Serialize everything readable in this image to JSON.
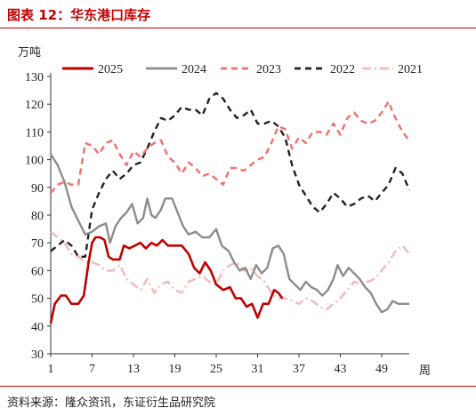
{
  "title": "图表 12：华东港口库存",
  "source": "资料来源：隆众资讯，东证衍生品研究院",
  "colors": {
    "title": "#c00000",
    "rule": "#c00000"
  },
  "chart_data": {
    "type": "line",
    "ylabel": "万吨",
    "xlabel": "周",
    "ylim": [
      30,
      130
    ],
    "yticks": [
      30,
      40,
      50,
      60,
      70,
      80,
      90,
      100,
      110,
      120,
      130
    ],
    "xlim": [
      1,
      53
    ],
    "xticks": [
      1,
      7,
      13,
      19,
      25,
      31,
      37,
      43,
      49
    ],
    "legend_position": "top",
    "grid": false,
    "series": [
      {
        "name": "2025",
        "color": "#c00000",
        "dash": "solid",
        "width": 2.6,
        "points": [
          [
            1,
            41
          ],
          [
            1.6,
            48
          ],
          [
            2.5,
            51
          ],
          [
            3.2,
            51
          ],
          [
            4,
            48
          ],
          [
            5,
            48
          ],
          [
            5.8,
            51
          ],
          [
            6.5,
            63
          ],
          [
            7,
            70
          ],
          [
            7.5,
            72
          ],
          [
            8.2,
            72
          ],
          [
            8.8,
            71
          ],
          [
            9.4,
            65
          ],
          [
            10,
            64
          ],
          [
            11,
            64
          ],
          [
            11.6,
            69
          ],
          [
            12.4,
            68
          ],
          [
            13.2,
            69
          ],
          [
            14,
            70
          ],
          [
            14.8,
            68
          ],
          [
            15.6,
            70
          ],
          [
            16.4,
            69
          ],
          [
            17.2,
            71
          ],
          [
            18,
            69
          ],
          [
            19,
            69
          ],
          [
            20,
            69
          ],
          [
            21,
            66
          ],
          [
            21.8,
            61
          ],
          [
            22.6,
            59
          ],
          [
            23.4,
            63
          ],
          [
            24.2,
            60
          ],
          [
            25,
            55
          ],
          [
            26,
            53
          ],
          [
            27,
            54
          ],
          [
            27.8,
            50
          ],
          [
            28.6,
            50
          ],
          [
            29.4,
            47
          ],
          [
            30.2,
            48
          ],
          [
            31,
            43
          ],
          [
            31.8,
            48
          ],
          [
            32.6,
            48
          ],
          [
            33.4,
            53
          ],
          [
            34,
            52
          ],
          [
            34.6,
            50
          ]
        ]
      },
      {
        "name": "2024",
        "color": "#8c8c8c",
        "dash": "solid",
        "width": 2.4,
        "points": [
          [
            1,
            102
          ],
          [
            2,
            98
          ],
          [
            3,
            92
          ],
          [
            4,
            83
          ],
          [
            5,
            78
          ],
          [
            6,
            73
          ],
          [
            7,
            74
          ],
          [
            8,
            76
          ],
          [
            9,
            77
          ],
          [
            9.6,
            70
          ],
          [
            10.4,
            76
          ],
          [
            11.2,
            79
          ],
          [
            12,
            81
          ],
          [
            12.8,
            84
          ],
          [
            13.6,
            77
          ],
          [
            14.4,
            79
          ],
          [
            15,
            86
          ],
          [
            15.6,
            80
          ],
          [
            16.2,
            79
          ],
          [
            17,
            82
          ],
          [
            17.6,
            86
          ],
          [
            18.6,
            86
          ],
          [
            19.4,
            81
          ],
          [
            20.2,
            76
          ],
          [
            21,
            73
          ],
          [
            22,
            74
          ],
          [
            23,
            72
          ],
          [
            24,
            72
          ],
          [
            25,
            75
          ],
          [
            25.8,
            69
          ],
          [
            26.8,
            67
          ],
          [
            27.6,
            63
          ],
          [
            28.4,
            60
          ],
          [
            29.2,
            61
          ],
          [
            30,
            57
          ],
          [
            30.8,
            62
          ],
          [
            31.6,
            59
          ],
          [
            32.4,
            61
          ],
          [
            33.2,
            68
          ],
          [
            34,
            69
          ],
          [
            34.8,
            66
          ],
          [
            35.6,
            57
          ],
          [
            36.4,
            55
          ],
          [
            37.2,
            53
          ],
          [
            38,
            56
          ],
          [
            38.8,
            54
          ],
          [
            39.6,
            53
          ],
          [
            40.4,
            51
          ],
          [
            41.2,
            53
          ],
          [
            42,
            57
          ],
          [
            42.6,
            62
          ],
          [
            43.4,
            58
          ],
          [
            44.2,
            61
          ],
          [
            45,
            59
          ],
          [
            45.8,
            57
          ],
          [
            46.6,
            54
          ],
          [
            47.4,
            52
          ],
          [
            48.2,
            48
          ],
          [
            49,
            45
          ],
          [
            49.8,
            46
          ],
          [
            50.6,
            49
          ],
          [
            51.4,
            48
          ],
          [
            52,
            48
          ],
          [
            53,
            48
          ]
        ]
      },
      {
        "name": "2023",
        "color": "#f26e6e",
        "dash": "dash",
        "width": 2.4,
        "points": [
          [
            1,
            88
          ],
          [
            2,
            91
          ],
          [
            3,
            92
          ],
          [
            4,
            91
          ],
          [
            5,
            91
          ],
          [
            6,
            106
          ],
          [
            7,
            105
          ],
          [
            8,
            102
          ],
          [
            9,
            106
          ],
          [
            10,
            107
          ],
          [
            11,
            102
          ],
          [
            12,
            98
          ],
          [
            13,
            103
          ],
          [
            14,
            101
          ],
          [
            15,
            104
          ],
          [
            16,
            106
          ],
          [
            17,
            107
          ],
          [
            18,
            101
          ],
          [
            19,
            99
          ],
          [
            20,
            95
          ],
          [
            21,
            99
          ],
          [
            22,
            97
          ],
          [
            23,
            94
          ],
          [
            24,
            95
          ],
          [
            25,
            93
          ],
          [
            26,
            91
          ],
          [
            27,
            97
          ],
          [
            28,
            97
          ],
          [
            29,
            96
          ],
          [
            30,
            98
          ],
          [
            31,
            100
          ],
          [
            32,
            101
          ],
          [
            33,
            106
          ],
          [
            34,
            112
          ],
          [
            35,
            111
          ],
          [
            36,
            104
          ],
          [
            37,
            108
          ],
          [
            38,
            106
          ],
          [
            39,
            110
          ],
          [
            40,
            110
          ],
          [
            41,
            109
          ],
          [
            42,
            113
          ],
          [
            43,
            109
          ],
          [
            44,
            115
          ],
          [
            45,
            117
          ],
          [
            46,
            114
          ],
          [
            47,
            113
          ],
          [
            48,
            114
          ],
          [
            49,
            117
          ],
          [
            50,
            121
          ],
          [
            50.6,
            117
          ],
          [
            51.4,
            113
          ],
          [
            52,
            110
          ],
          [
            53,
            107
          ]
        ]
      },
      {
        "name": "2022",
        "color": "#222222",
        "dash": "dash",
        "width": 2.4,
        "points": [
          [
            1,
            67
          ],
          [
            2,
            69
          ],
          [
            3,
            71
          ],
          [
            4,
            69
          ],
          [
            5,
            65
          ],
          [
            6,
            65
          ],
          [
            7,
            82
          ],
          [
            8,
            88
          ],
          [
            9,
            93
          ],
          [
            10,
            96
          ],
          [
            11,
            93
          ],
          [
            12,
            95
          ],
          [
            13,
            98
          ],
          [
            14,
            99
          ],
          [
            15,
            104
          ],
          [
            16,
            110
          ],
          [
            17,
            115
          ],
          [
            18,
            114
          ],
          [
            19,
            116
          ],
          [
            20,
            119
          ],
          [
            21,
            118
          ],
          [
            22,
            118
          ],
          [
            23,
            116
          ],
          [
            24,
            122
          ],
          [
            25,
            124
          ],
          [
            26,
            122
          ],
          [
            27,
            118
          ],
          [
            28,
            115
          ],
          [
            29,
            116
          ],
          [
            30,
            118
          ],
          [
            31,
            113
          ],
          [
            32,
            113
          ],
          [
            33,
            114
          ],
          [
            34,
            112
          ],
          [
            35,
            108
          ],
          [
            36,
            98
          ],
          [
            37,
            91
          ],
          [
            38,
            87
          ],
          [
            39,
            83
          ],
          [
            40,
            81
          ],
          [
            41,
            84
          ],
          [
            42,
            88
          ],
          [
            43,
            86
          ],
          [
            44,
            83
          ],
          [
            45,
            84
          ],
          [
            46,
            86
          ],
          [
            47,
            87
          ],
          [
            48,
            85
          ],
          [
            49,
            88
          ],
          [
            50,
            91
          ],
          [
            51,
            97
          ],
          [
            52,
            95
          ],
          [
            53,
            89
          ]
        ]
      },
      {
        "name": "2021",
        "color": "#f4b8b8",
        "dash": "dashdot",
        "width": 2.4,
        "points": [
          [
            1,
            74
          ],
          [
            2,
            72
          ],
          [
            3,
            70
          ],
          [
            4,
            66
          ],
          [
            5,
            65
          ],
          [
            6,
            63
          ],
          [
            7,
            63
          ],
          [
            8,
            62
          ],
          [
            9,
            60
          ],
          [
            10,
            60
          ],
          [
            11,
            62
          ],
          [
            12,
            57
          ],
          [
            13,
            55
          ],
          [
            14,
            53
          ],
          [
            15,
            57
          ],
          [
            16,
            52
          ],
          [
            17,
            55
          ],
          [
            18,
            56
          ],
          [
            19,
            53
          ],
          [
            20,
            52
          ],
          [
            21,
            56
          ],
          [
            22,
            57
          ],
          [
            23,
            58
          ],
          [
            24,
            56
          ],
          [
            25,
            55
          ],
          [
            26,
            60
          ],
          [
            27,
            62
          ],
          [
            28,
            63
          ],
          [
            29,
            60
          ],
          [
            30,
            61
          ],
          [
            31,
            58
          ],
          [
            32,
            56
          ],
          [
            33,
            52
          ],
          [
            34,
            50
          ],
          [
            35,
            50
          ],
          [
            36,
            49
          ],
          [
            37,
            48
          ],
          [
            38,
            50
          ],
          [
            39,
            49
          ],
          [
            40,
            47
          ],
          [
            41,
            46
          ],
          [
            42,
            48
          ],
          [
            43,
            50
          ],
          [
            44,
            53
          ],
          [
            45,
            56
          ],
          [
            46,
            55
          ],
          [
            47,
            56
          ],
          [
            48,
            57
          ],
          [
            49,
            60
          ],
          [
            50,
            63
          ],
          [
            51,
            67
          ],
          [
            52,
            69
          ],
          [
            53,
            66
          ]
        ]
      }
    ]
  }
}
